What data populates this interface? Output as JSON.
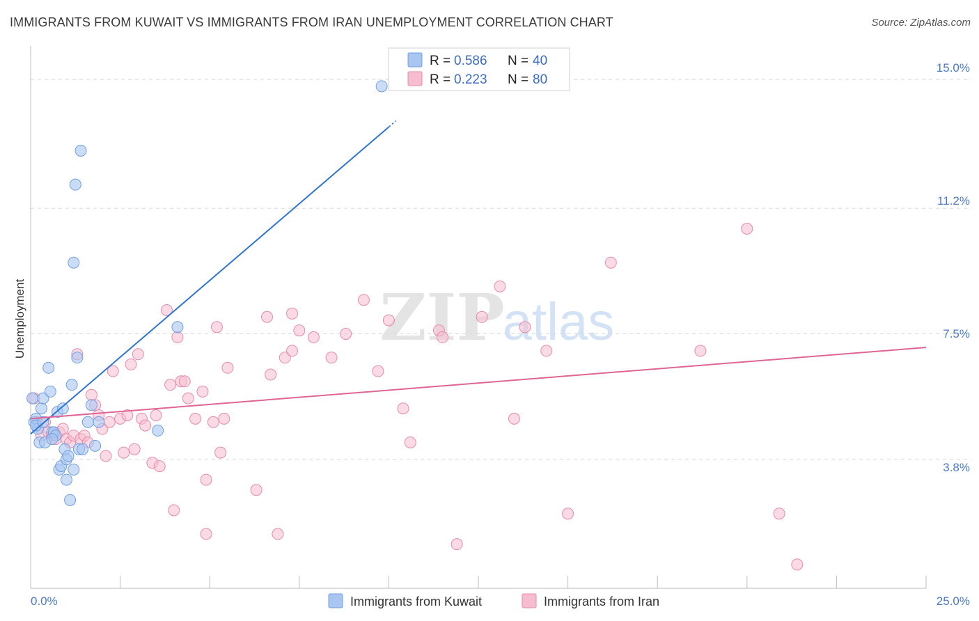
{
  "title": "IMMIGRANTS FROM KUWAIT VS IMMIGRANTS FROM IRAN UNEMPLOYMENT CORRELATION CHART",
  "source": "Source: ZipAtlas.com",
  "watermark": {
    "zip": "ZIP",
    "atlas": "atlas"
  },
  "colors": {
    "kuwait_fill": "#a9c6f0",
    "kuwait_stroke": "#6f9fe0",
    "kuwait_line": "#2f74d0",
    "iran_fill": "#f6bdd0",
    "iran_stroke": "#e88aaa",
    "iran_line": "#e06595",
    "axis_label": "#4a7cc9",
    "grid": "#d8d8d8"
  },
  "legend": {
    "rows": [
      {
        "r_label": "R = ",
        "r_value": "0.586",
        "n_label": "N = ",
        "n_value": "40"
      },
      {
        "r_label": "R = ",
        "r_value": "0.223",
        "n_label": "N = ",
        "n_value": "80"
      }
    ]
  },
  "bottom_legend": [
    "Immigrants from Kuwait",
    "Immigrants from Iran"
  ],
  "chart_data": {
    "type": "scatter",
    "title": "IMMIGRANTS FROM KUWAIT VS IMMIGRANTS FROM IRAN UNEMPLOYMENT CORRELATION CHART",
    "xlabel": "",
    "ylabel": "Unemployment",
    "xlim": [
      0,
      25
    ],
    "ylim": [
      0,
      15.7
    ],
    "x_tick_labels": [
      "0.0%",
      "25.0%"
    ],
    "y_ticks": [
      3.8,
      7.5,
      11.2,
      15.0
    ],
    "y_tick_labels": [
      "3.8%",
      "7.5%",
      "11.2%",
      "15.0%"
    ],
    "series": [
      {
        "name": "Immigrants from Kuwait",
        "R": 0.586,
        "N": 40,
        "trend": {
          "x0": 0,
          "y0": 4.55,
          "x1": 10.0,
          "y1": 13.6,
          "dash_to_x": 10.2
        },
        "points": [
          [
            0.05,
            5.6
          ],
          [
            0.1,
            4.9
          ],
          [
            0.15,
            5.0
          ],
          [
            0.2,
            4.7
          ],
          [
            0.25,
            4.3
          ],
          [
            0.3,
            5.3
          ],
          [
            0.35,
            5.6
          ],
          [
            0.4,
            4.3
          ],
          [
            0.5,
            6.5
          ],
          [
            0.55,
            5.8
          ],
          [
            0.6,
            4.6
          ],
          [
            0.65,
            4.6
          ],
          [
            0.7,
            4.5
          ],
          [
            0.75,
            5.2
          ],
          [
            0.8,
            3.5
          ],
          [
            0.85,
            3.6
          ],
          [
            0.9,
            5.3
          ],
          [
            0.95,
            4.1
          ],
          [
            1.0,
            3.2
          ],
          [
            1.0,
            3.8
          ],
          [
            1.05,
            3.9
          ],
          [
            1.1,
            2.6
          ],
          [
            1.15,
            6.0
          ],
          [
            1.2,
            9.6
          ],
          [
            1.2,
            3.5
          ],
          [
            1.25,
            11.9
          ],
          [
            1.3,
            6.8
          ],
          [
            1.35,
            4.1
          ],
          [
            1.4,
            12.9
          ],
          [
            1.45,
            4.1
          ],
          [
            1.6,
            4.9
          ],
          [
            1.7,
            5.4
          ],
          [
            1.8,
            4.2
          ],
          [
            1.9,
            4.9
          ],
          [
            3.55,
            4.65
          ],
          [
            4.1,
            7.7
          ],
          [
            9.8,
            14.8
          ],
          [
            0.15,
            4.8
          ],
          [
            0.6,
            4.4
          ],
          [
            0.35,
            4.9
          ]
        ]
      },
      {
        "name": "Immigrants from Iran",
        "R": 0.223,
        "N": 80,
        "trend": {
          "x0": 0,
          "y0": 5.0,
          "x1": 25.0,
          "y1": 7.1
        },
        "points": [
          [
            0.1,
            5.6
          ],
          [
            0.2,
            4.9
          ],
          [
            0.3,
            4.5
          ],
          [
            0.4,
            4.9
          ],
          [
            0.5,
            4.6
          ],
          [
            0.6,
            4.5
          ],
          [
            0.7,
            4.4
          ],
          [
            0.8,
            4.6
          ],
          [
            0.9,
            4.7
          ],
          [
            1.0,
            4.4
          ],
          [
            1.1,
            4.3
          ],
          [
            1.2,
            4.5
          ],
          [
            1.3,
            6.9
          ],
          [
            1.4,
            4.4
          ],
          [
            1.5,
            4.5
          ],
          [
            1.6,
            4.3
          ],
          [
            1.7,
            5.7
          ],
          [
            1.8,
            5.4
          ],
          [
            1.9,
            5.1
          ],
          [
            2.0,
            4.7
          ],
          [
            2.1,
            3.9
          ],
          [
            2.2,
            4.9
          ],
          [
            2.3,
            6.4
          ],
          [
            2.5,
            5.0
          ],
          [
            2.6,
            4.0
          ],
          [
            2.7,
            5.1
          ],
          [
            2.8,
            6.6
          ],
          [
            2.9,
            4.1
          ],
          [
            3.0,
            6.9
          ],
          [
            3.1,
            5.0
          ],
          [
            3.2,
            4.8
          ],
          [
            3.4,
            3.7
          ],
          [
            3.5,
            5.1
          ],
          [
            3.6,
            3.6
          ],
          [
            3.8,
            8.2
          ],
          [
            3.9,
            6.0
          ],
          [
            4.0,
            2.3
          ],
          [
            4.1,
            7.4
          ],
          [
            4.2,
            6.1
          ],
          [
            4.3,
            6.1
          ],
          [
            4.4,
            5.6
          ],
          [
            4.6,
            5.0
          ],
          [
            4.8,
            5.8
          ],
          [
            4.9,
            3.2
          ],
          [
            4.9,
            1.6
          ],
          [
            5.1,
            4.9
          ],
          [
            5.2,
            7.7
          ],
          [
            5.3,
            4.0
          ],
          [
            5.4,
            5.0
          ],
          [
            5.5,
            6.5
          ],
          [
            6.3,
            2.9
          ],
          [
            6.6,
            8.0
          ],
          [
            6.7,
            6.3
          ],
          [
            6.9,
            1.6
          ],
          [
            7.1,
            6.8
          ],
          [
            7.3,
            8.1
          ],
          [
            7.3,
            7.0
          ],
          [
            7.5,
            7.6
          ],
          [
            7.9,
            7.4
          ],
          [
            8.4,
            6.8
          ],
          [
            8.8,
            7.5
          ],
          [
            9.3,
            8.5
          ],
          [
            9.7,
            6.4
          ],
          [
            10.0,
            7.9
          ],
          [
            10.4,
            5.3
          ],
          [
            10.6,
            4.3
          ],
          [
            11.4,
            7.6
          ],
          [
            11.5,
            7.4
          ],
          [
            11.9,
            1.3
          ],
          [
            12.6,
            8.0
          ],
          [
            13.1,
            8.9
          ],
          [
            13.5,
            5.0
          ],
          [
            13.8,
            7.7
          ],
          [
            14.4,
            7.0
          ],
          [
            15.0,
            2.2
          ],
          [
            16.2,
            9.6
          ],
          [
            18.7,
            7.0
          ],
          [
            20.0,
            10.6
          ],
          [
            20.9,
            2.2
          ],
          [
            21.4,
            0.7
          ]
        ]
      }
    ]
  }
}
